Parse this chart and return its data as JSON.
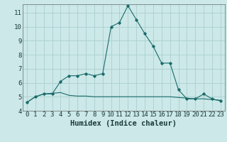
{
  "xlabel": "Humidex (Indice chaleur)",
  "bg_color": "#cce8e8",
  "grid_color": "#aacfcf",
  "line_color": "#1a6b6b",
  "x_main": [
    0,
    1,
    2,
    3,
    4,
    5,
    6,
    7,
    8,
    9,
    10,
    11,
    12,
    13,
    14,
    15,
    16,
    17,
    18,
    19,
    20,
    21,
    22,
    23
  ],
  "y_main": [
    4.6,
    5.0,
    5.2,
    5.2,
    6.1,
    6.5,
    6.5,
    6.65,
    6.5,
    6.65,
    10.0,
    10.3,
    11.5,
    10.5,
    9.5,
    8.6,
    7.4,
    7.4,
    5.5,
    4.85,
    4.85,
    5.2,
    4.85,
    4.7
  ],
  "x_flat": [
    0,
    1,
    2,
    3,
    4,
    5,
    6,
    7,
    8,
    9,
    10,
    11,
    12,
    13,
    14,
    15,
    16,
    17,
    18,
    19,
    20,
    21,
    22,
    23
  ],
  "y_flat": [
    4.6,
    5.0,
    5.2,
    5.25,
    5.3,
    5.1,
    5.05,
    5.05,
    5.0,
    5.0,
    5.0,
    5.0,
    5.0,
    5.0,
    5.0,
    5.0,
    5.0,
    5.0,
    4.95,
    4.9,
    4.85,
    4.85,
    4.8,
    4.75
  ],
  "ylim": [
    4,
    11.6
  ],
  "xlim": [
    -0.5,
    23.5
  ],
  "yticks": [
    4,
    5,
    6,
    7,
    8,
    9,
    10,
    11
  ],
  "xticks": [
    0,
    1,
    2,
    3,
    4,
    5,
    6,
    7,
    8,
    9,
    10,
    11,
    12,
    13,
    14,
    15,
    16,
    17,
    18,
    19,
    20,
    21,
    22,
    23
  ],
  "tick_fontsize": 6.5,
  "xlabel_fontsize": 7.5
}
